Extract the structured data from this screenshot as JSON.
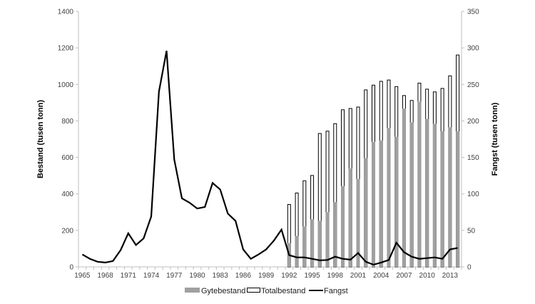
{
  "chart_data": {
    "type": "bar",
    "title": "",
    "xlabel": "",
    "ylabel": "Bestand (tusen tonn)",
    "y2label": "Fangst (tusen tonn)",
    "ylim": [
      0,
      1400
    ],
    "y2lim": [
      0,
      350
    ],
    "yticks": [
      0,
      200,
      400,
      600,
      800,
      1000,
      1200,
      1400
    ],
    "y2ticks": [
      0,
      50,
      100,
      150,
      200,
      250,
      300,
      350
    ],
    "xtick_labels": [
      "1965",
      "1968",
      "1971",
      "1974",
      "1977",
      "1980",
      "1983",
      "1986",
      "1989",
      "1992",
      "1995",
      "1998",
      "2001",
      "2004",
      "2007",
      "2010",
      "2013"
    ],
    "grid": false,
    "legend_position": "bottom",
    "categories": [
      1965,
      1966,
      1967,
      1968,
      1969,
      1970,
      1971,
      1972,
      1973,
      1974,
      1975,
      1976,
      1977,
      1978,
      1979,
      1980,
      1981,
      1982,
      1983,
      1984,
      1985,
      1986,
      1987,
      1988,
      1989,
      1990,
      1991,
      1992,
      1993,
      1994,
      1995,
      1996,
      1997,
      1998,
      1999,
      2000,
      2001,
      2002,
      2003,
      2004,
      2005,
      2006,
      2007,
      2008,
      2009,
      2010,
      2011,
      2012,
      2013,
      2014
    ],
    "series": [
      {
        "name": "Gytebestand",
        "type": "bar",
        "axis": "left",
        "color": "#a0a0a0",
        "x": [
          1992,
          1993,
          1994,
          1995,
          1996,
          1997,
          1998,
          1999,
          2000,
          2001,
          2002,
          2003,
          2004,
          2005,
          2006,
          2007,
          2008,
          2009,
          2010,
          2011,
          2012,
          2013,
          2014
        ],
        "values": [
          130,
          170,
          222,
          261,
          253,
          300,
          355,
          443,
          540,
          482,
          597,
          686,
          693,
          761,
          714,
          868,
          792,
          906,
          811,
          785,
          743,
          765,
          743
        ]
      },
      {
        "name": "Totalbestand",
        "type": "bar",
        "axis": "left",
        "color": "#ffffff",
        "x": [
          1992,
          1993,
          1994,
          1995,
          1996,
          1997,
          1998,
          1999,
          2000,
          2001,
          2002,
          2003,
          2004,
          2005,
          2006,
          2007,
          2008,
          2009,
          2010,
          2011,
          2012,
          2013,
          2014
        ],
        "values": [
          344,
          407,
          474,
          503,
          733,
          746,
          787,
          863,
          870,
          878,
          972,
          998,
          1019,
          1026,
          990,
          941,
          914,
          1009,
          976,
          961,
          980,
          1049,
          1163
        ]
      },
      {
        "name": "Fangst",
        "type": "line",
        "axis": "right",
        "color": "#000000",
        "x": [
          1965,
          1966,
          1967,
          1968,
          1969,
          1970,
          1971,
          1972,
          1973,
          1974,
          1975,
          1976,
          1977,
          1978,
          1979,
          1980,
          1981,
          1982,
          1983,
          1984,
          1985,
          1986,
          1987,
          1988,
          1989,
          1990,
          1991,
          1992,
          1993,
          1994,
          1995,
          1996,
          1997,
          1998,
          1999,
          2000,
          2001,
          2002,
          2003,
          2004,
          2005,
          2006,
          2007,
          2008,
          2009,
          2010,
          2011,
          2012,
          2013,
          2014
        ],
        "values": [
          17,
          11,
          7,
          6,
          8,
          23,
          46,
          30,
          39,
          69,
          240,
          296,
          147,
          94,
          88,
          80,
          82,
          115,
          106,
          73,
          63,
          24,
          11,
          17,
          24,
          36,
          51,
          16,
          13,
          13,
          11,
          9,
          9.5,
          14,
          11,
          10,
          19,
          7,
          3,
          6,
          9.5,
          33,
          20,
          14,
          11,
          12,
          13,
          11,
          24,
          26
        ]
      }
    ]
  },
  "legend": {
    "items": [
      {
        "label": "Gytebestand"
      },
      {
        "label": "Totalbestand"
      },
      {
        "label": "Fangst"
      }
    ]
  },
  "axes": {
    "left_title": "Bestand (tusen tonn)",
    "right_title": "Fangst (tusen tonn)"
  }
}
